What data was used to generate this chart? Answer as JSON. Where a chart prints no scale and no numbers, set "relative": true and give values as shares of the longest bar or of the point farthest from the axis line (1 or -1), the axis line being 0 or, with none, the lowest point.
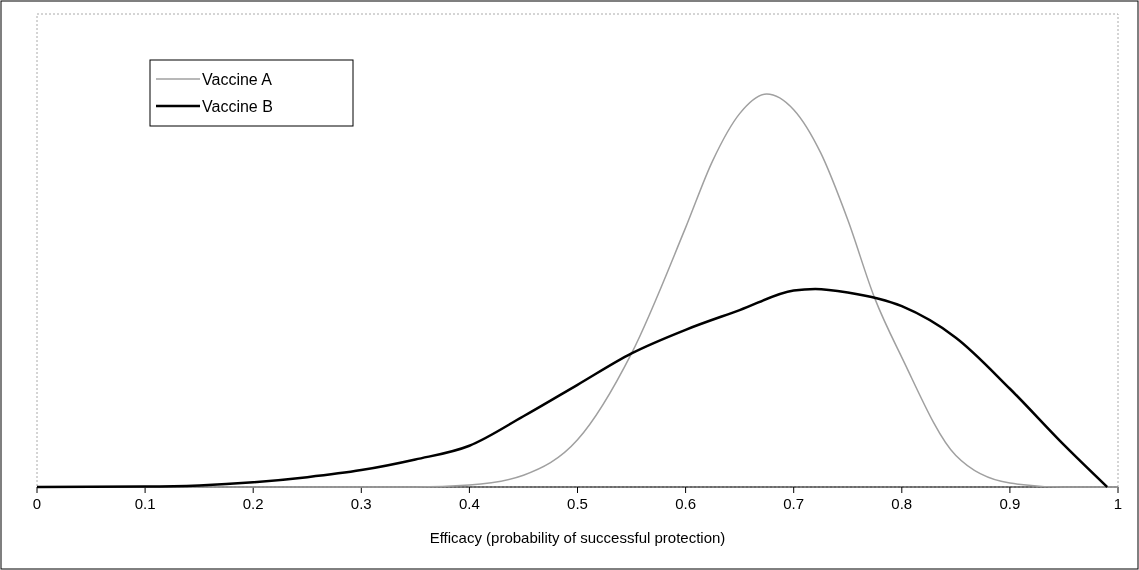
{
  "chart_data": {
    "type": "line",
    "relative": true,
    "xlabel": "Efficacy (probability of successful protection)",
    "xlim": [
      0,
      1
    ],
    "xticks": [
      0,
      0.1,
      0.2,
      0.3,
      0.4,
      0.5,
      0.6,
      0.7,
      0.8,
      0.9,
      1
    ],
    "legend": "top left",
    "grid": false,
    "series": [
      {
        "name": "Vaccine A",
        "color": "#a0a0a0",
        "x": [
          0,
          0.35,
          0.4,
          0.45,
          0.5,
          0.55,
          0.6,
          0.625,
          0.65,
          0.675,
          0.7,
          0.725,
          0.75,
          0.775,
          0.8,
          0.85,
          0.9,
          0.95,
          1
        ],
        "values": [
          0,
          0,
          0.005,
          0.03,
          0.12,
          0.34,
          0.66,
          0.83,
          0.95,
          1,
          0.96,
          0.85,
          0.68,
          0.48,
          0.33,
          0.08,
          0.01,
          0,
          0
        ]
      },
      {
        "name": "Vaccine B",
        "color": "#000000",
        "x": [
          0,
          0.1,
          0.15,
          0.2,
          0.25,
          0.3,
          0.35,
          0.4,
          0.45,
          0.5,
          0.55,
          0.6,
          0.65,
          0.7,
          0.72,
          0.75,
          0.8,
          0.85,
          0.9,
          0.95,
          0.99
        ],
        "values": [
          0,
          0.001,
          0.004,
          0.012,
          0.025,
          0.043,
          0.07,
          0.105,
          0.18,
          0.26,
          0.34,
          0.4,
          0.45,
          0.5,
          0.504,
          0.495,
          0.46,
          0.38,
          0.25,
          0.107,
          0
        ]
      }
    ]
  }
}
